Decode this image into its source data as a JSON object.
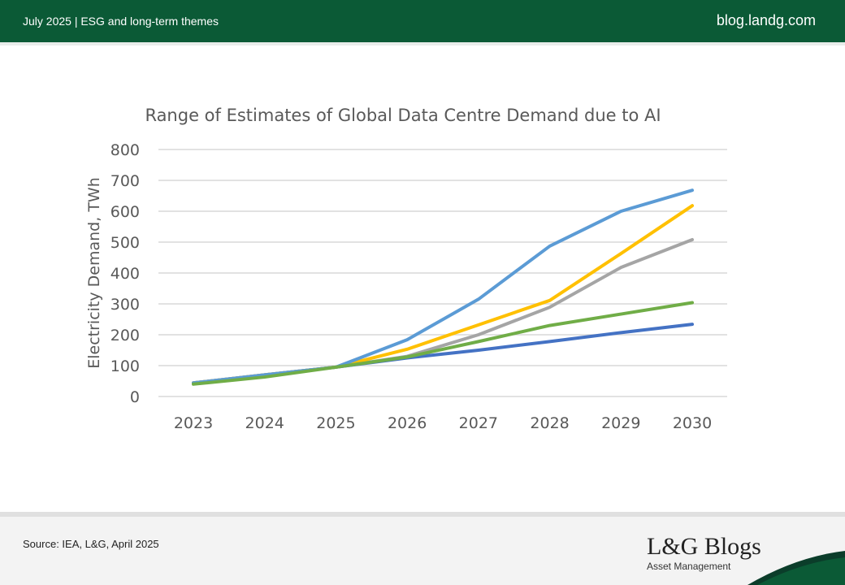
{
  "header": {
    "left": "July 2025 |  ESG and long-term themes",
    "right": "blog.landg.com"
  },
  "footer": {
    "source": "Source: IEA, L&G, April 2025",
    "logo": "L&G Blogs",
    "logo_sub": "Asset Management"
  },
  "chart_data": {
    "type": "line",
    "title": "Range of Estimates of Global Data Centre Demand due to AI",
    "xlabel": "",
    "ylabel": "Electricity Demand, TWh",
    "ylim": [
      0,
      800
    ],
    "yticks": [
      0,
      100,
      200,
      300,
      400,
      500,
      600,
      700,
      800
    ],
    "grid": true,
    "x": [
      "2023",
      "2024",
      "2025",
      "2026",
      "2027",
      "2028",
      "2029",
      "2030"
    ],
    "series": [
      {
        "color": "#4472c4",
        "values": [
          44,
          70,
          95,
          125,
          150,
          178,
          207,
          234
        ]
      },
      {
        "color": "#a5a5a5",
        "values": [
          44,
          70,
          95,
          130,
          200,
          289,
          418,
          508
        ]
      },
      {
        "color": "#ffc000",
        "values": [
          44,
          70,
          95,
          153,
          232,
          311,
          463,
          618
        ]
      },
      {
        "color": "#5b9bd5",
        "values": [
          44,
          70,
          95,
          184,
          315,
          487,
          600,
          668
        ]
      },
      {
        "color": "#70ad47",
        "values": [
          40,
          63,
          95,
          128,
          178,
          230,
          267,
          304
        ]
      }
    ]
  }
}
